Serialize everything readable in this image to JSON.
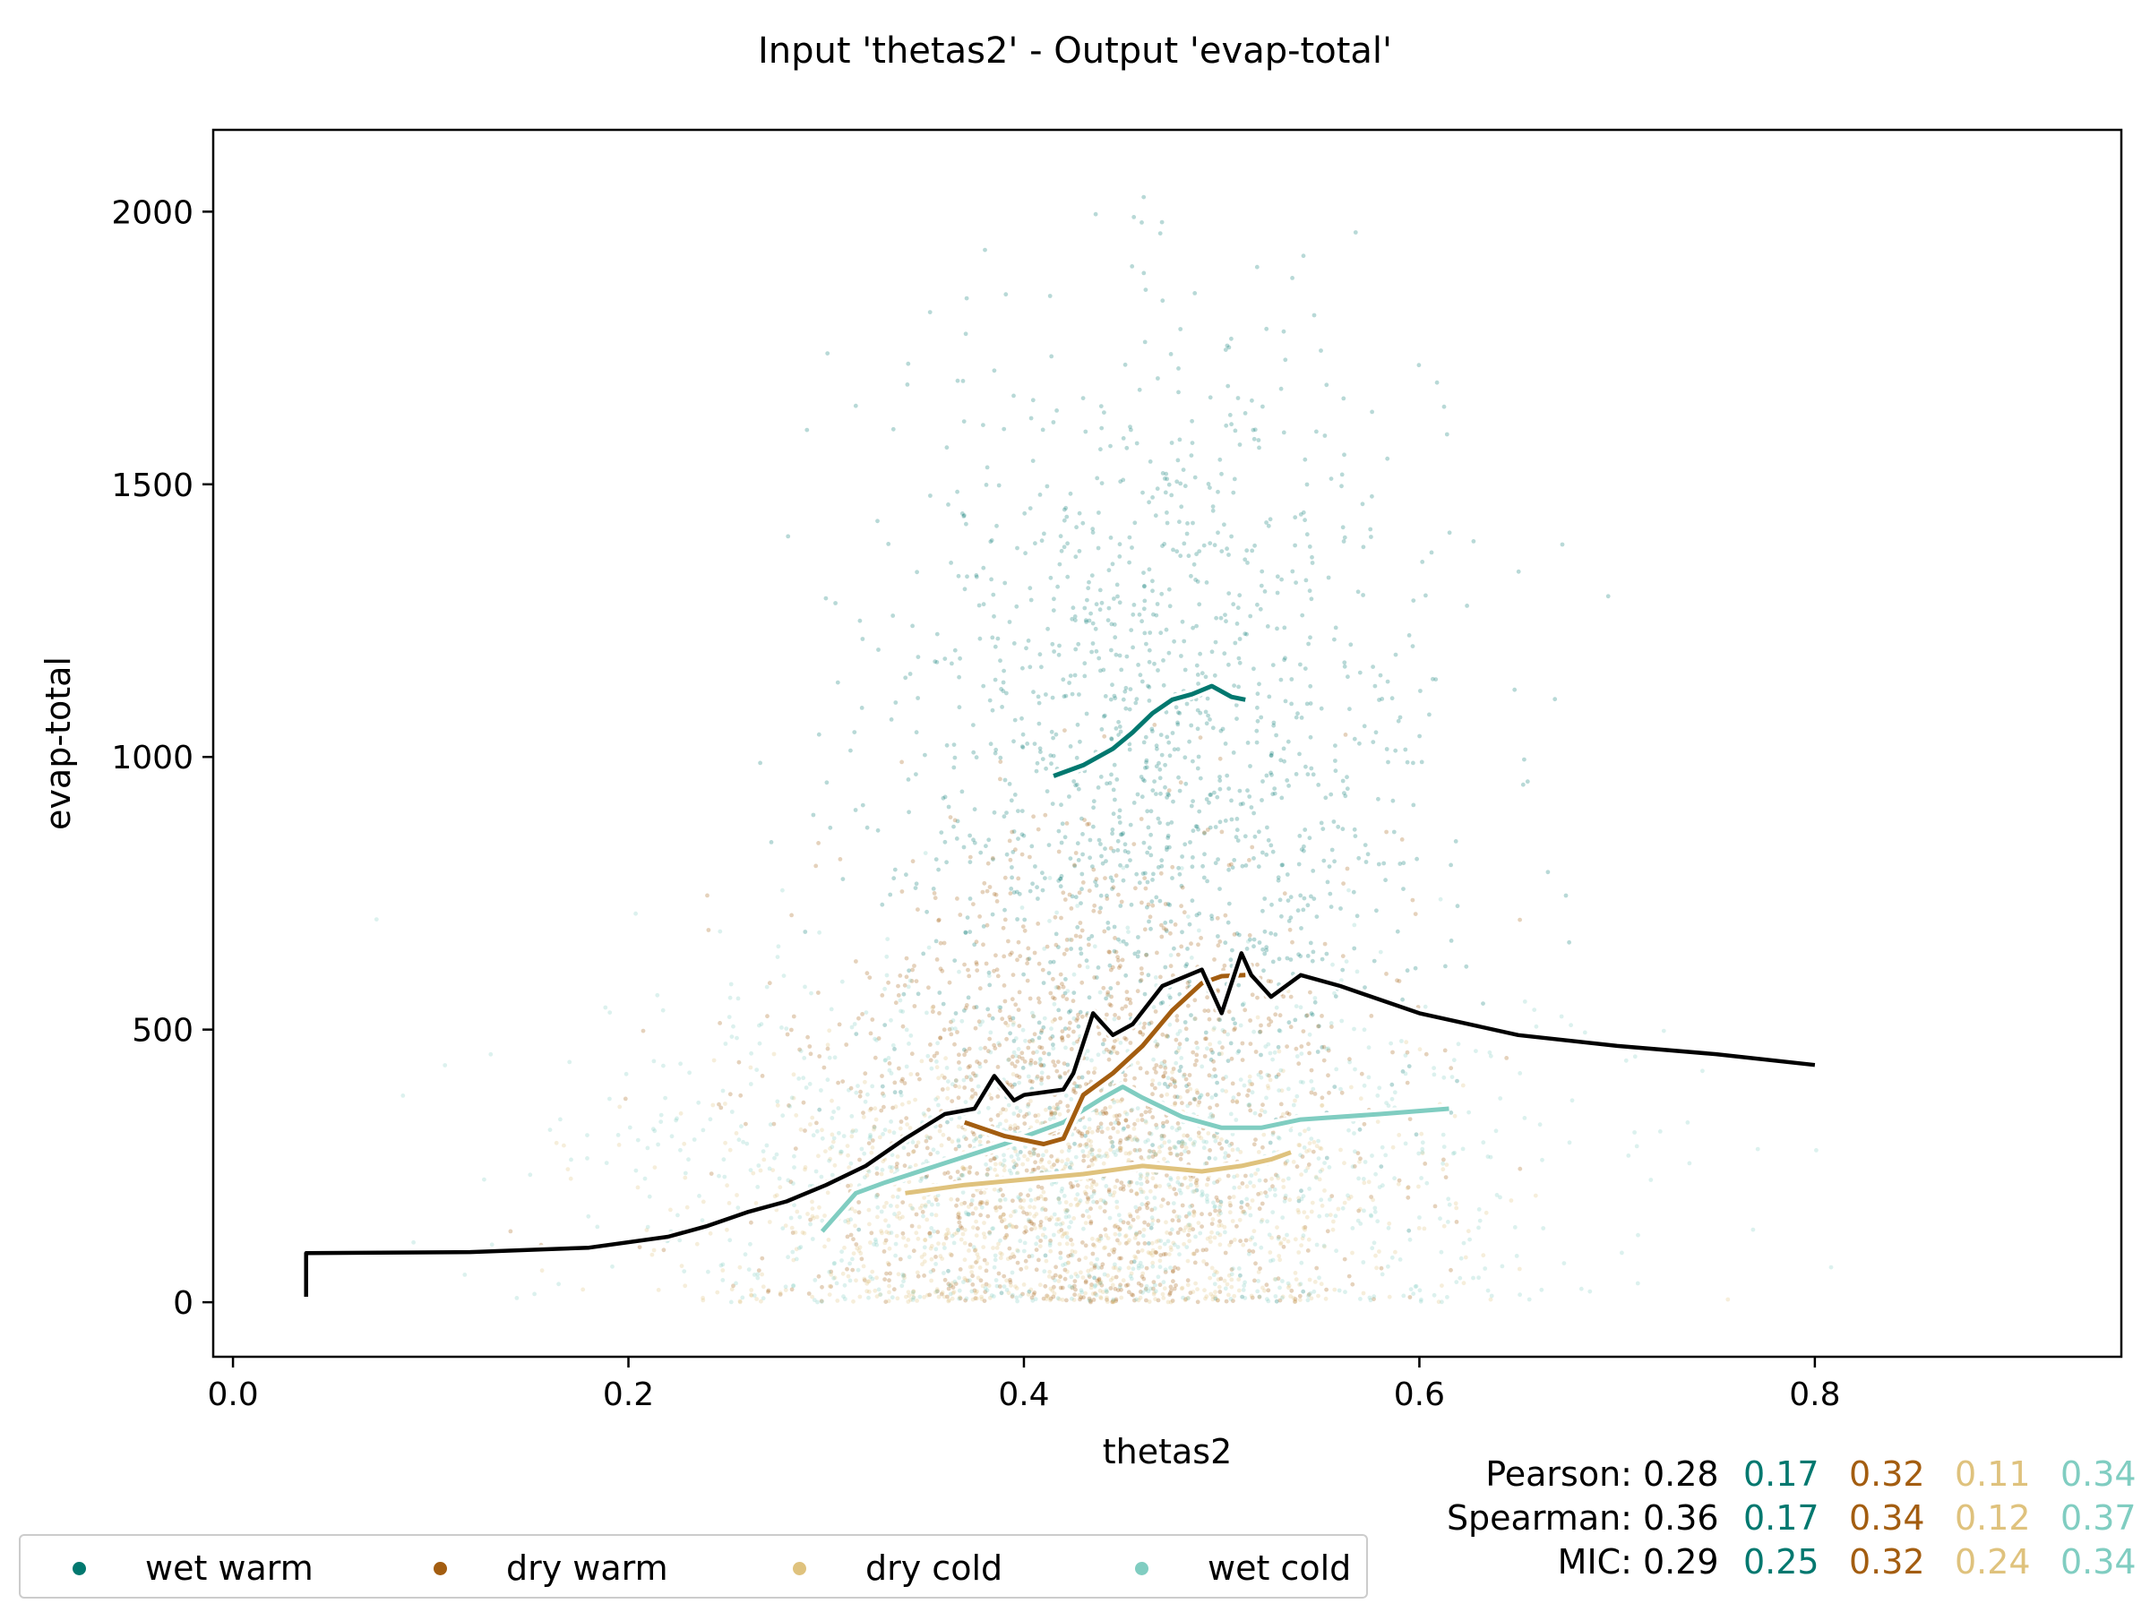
{
  "chart_data": {
    "type": "scatter",
    "title": "Input 'thetas2' - Output 'evap-total'",
    "xlabel": "thetas2",
    "ylabel": "evap-total",
    "xlim": [
      -0.01,
      0.955
    ],
    "ylim": [
      -100,
      2150
    ],
    "xticks": [
      0.0,
      0.2,
      0.4,
      0.6,
      0.8
    ],
    "xtick_labels": [
      "0.0",
      "0.2",
      "0.4",
      "0.6",
      "0.8"
    ],
    "yticks": [
      0,
      500,
      1000,
      1500,
      2000
    ],
    "ytick_labels": [
      "0",
      "500",
      "1000",
      "1500",
      "2000"
    ],
    "grid": false,
    "legend_position": "bottom-left, below plot",
    "colors": {
      "overall": "#000000",
      "wet warm": "#01786f",
      "dry warm": "#a35d10",
      "dry cold": "#dfc27d",
      "wet cold": "#80cdc1"
    },
    "series": [
      {
        "name": "wet warm",
        "color": "#01786f",
        "trend": [
          [
            0.415,
            965
          ],
          [
            0.43,
            985
          ],
          [
            0.445,
            1015
          ],
          [
            0.455,
            1045
          ],
          [
            0.465,
            1080
          ],
          [
            0.475,
            1105
          ],
          [
            0.485,
            1115
          ],
          [
            0.495,
            1130
          ],
          [
            0.505,
            1110
          ],
          [
            0.512,
            1105
          ]
        ]
      },
      {
        "name": "dry warm",
        "color": "#a35d10",
        "trend": [
          [
            0.37,
            330
          ],
          [
            0.39,
            305
          ],
          [
            0.41,
            290
          ],
          [
            0.42,
            300
          ],
          [
            0.43,
            380
          ],
          [
            0.445,
            420
          ],
          [
            0.46,
            470
          ],
          [
            0.475,
            535
          ],
          [
            0.49,
            585
          ],
          [
            0.5,
            598
          ],
          [
            0.512,
            600
          ]
        ]
      },
      {
        "name": "dry cold",
        "color": "#dfc27d",
        "trend": [
          [
            0.34,
            200
          ],
          [
            0.37,
            215
          ],
          [
            0.4,
            225
          ],
          [
            0.43,
            235
          ],
          [
            0.46,
            250
          ],
          [
            0.49,
            240
          ],
          [
            0.51,
            250
          ],
          [
            0.525,
            262
          ],
          [
            0.535,
            275
          ]
        ]
      },
      {
        "name": "wet cold",
        "color": "#80cdc1",
        "trend": [
          [
            0.298,
            130
          ],
          [
            0.315,
            200
          ],
          [
            0.33,
            220
          ],
          [
            0.36,
            255
          ],
          [
            0.39,
            290
          ],
          [
            0.42,
            330
          ],
          [
            0.44,
            375
          ],
          [
            0.45,
            395
          ],
          [
            0.46,
            375
          ],
          [
            0.48,
            340
          ],
          [
            0.5,
            320
          ],
          [
            0.52,
            320
          ],
          [
            0.54,
            335
          ],
          [
            0.58,
            345
          ],
          [
            0.615,
            355
          ]
        ]
      }
    ],
    "overall_trend": [
      [
        0.037,
        10
      ],
      [
        0.037,
        90
      ],
      [
        0.12,
        92
      ],
      [
        0.18,
        100
      ],
      [
        0.22,
        120
      ],
      [
        0.24,
        140
      ],
      [
        0.26,
        165
      ],
      [
        0.28,
        185
      ],
      [
        0.3,
        215
      ],
      [
        0.32,
        250
      ],
      [
        0.34,
        300
      ],
      [
        0.36,
        345
      ],
      [
        0.375,
        355
      ],
      [
        0.385,
        415
      ],
      [
        0.395,
        370
      ],
      [
        0.4,
        380
      ],
      [
        0.42,
        390
      ],
      [
        0.425,
        420
      ],
      [
        0.435,
        530
      ],
      [
        0.445,
        490
      ],
      [
        0.455,
        510
      ],
      [
        0.47,
        580
      ],
      [
        0.49,
        610
      ],
      [
        0.5,
        530
      ],
      [
        0.51,
        640
      ],
      [
        0.515,
        600
      ],
      [
        0.525,
        560
      ],
      [
        0.54,
        600
      ],
      [
        0.56,
        580
      ],
      [
        0.6,
        530
      ],
      [
        0.65,
        490
      ],
      [
        0.7,
        470
      ],
      [
        0.75,
        455
      ],
      [
        0.8,
        435
      ]
    ],
    "scatter_density": [
      {
        "series": "wet warm",
        "x_center": 0.47,
        "x_spread": 0.07,
        "y_center": 1000,
        "y_spread": 380,
        "count": 1400
      },
      {
        "series": "dry warm",
        "x_center": 0.43,
        "x_spread": 0.07,
        "y_center": 350,
        "y_spread": 250,
        "count": 1400
      },
      {
        "series": "dry cold",
        "x_center": 0.42,
        "x_spread": 0.09,
        "y_center": 180,
        "y_spread": 130,
        "count": 1000
      },
      {
        "series": "wet cold",
        "x_center": 0.43,
        "x_spread": 0.12,
        "y_center": 260,
        "y_spread": 180,
        "count": 1200
      }
    ],
    "stats": [
      {
        "label": "Pearson:",
        "overall": "0.28",
        "values": [
          "0.17",
          "0.32",
          "0.11",
          "0.34"
        ]
      },
      {
        "label": "Spearman:",
        "overall": "0.36",
        "values": [
          "0.17",
          "0.34",
          "0.12",
          "0.37"
        ]
      },
      {
        "label": "MIC:",
        "overall": "0.29",
        "values": [
          "0.25",
          "0.32",
          "0.24",
          "0.34"
        ]
      }
    ]
  }
}
